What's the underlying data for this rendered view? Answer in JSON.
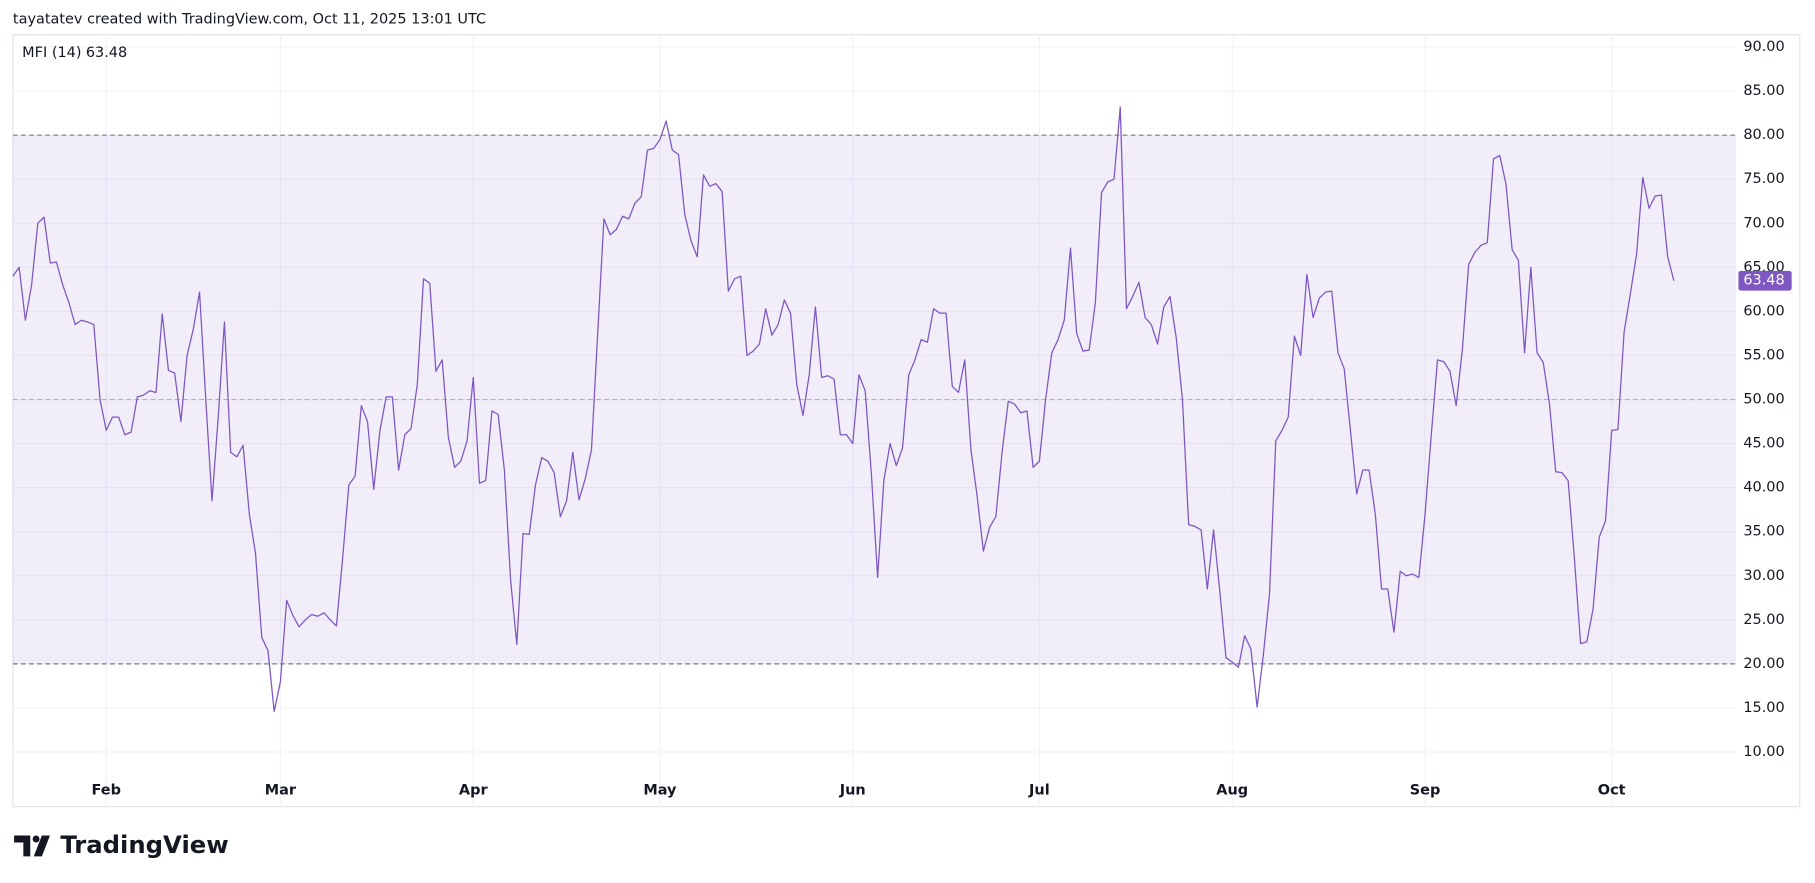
{
  "header": {
    "title": "tayatatev created with TradingView.com, Oct 11, 2025 13:01 UTC"
  },
  "footer": {
    "logo": "TradingView"
  },
  "chart_data": {
    "type": "line",
    "last_label": "63.48",
    "series": [
      {
        "name": "MFI (14)",
        "color": "#7e57c2",
        "values": [
          64,
          65,
          59,
          63,
          70,
          70.7,
          65.5,
          65.6,
          63,
          61,
          58.5,
          59,
          58.8,
          58.5,
          50,
          46.5,
          48,
          48,
          46,
          46.3,
          50.3,
          50.5,
          51,
          50.8,
          59.7,
          53.3,
          53,
          47.5,
          55,
          58,
          62.2,
          50,
          38.5,
          48,
          58.8,
          44,
          43.5,
          44.8,
          37,
          32.5,
          23,
          21.5,
          14.6,
          18,
          27.2,
          25.5,
          24.2,
          25,
          25.6,
          25.4,
          25.8,
          25,
          24.3,
          32,
          40.3,
          41.3,
          49.3,
          47.5,
          39.8,
          46.5,
          50.3,
          50.3,
          42,
          46,
          46.7,
          51.7,
          63.7,
          63.2,
          53.2,
          54.5,
          45.7,
          42.3,
          43,
          45.3,
          52.5,
          40.5,
          40.8,
          48.7,
          48.3,
          42,
          29.5,
          22.2,
          34.8,
          34.7,
          40.3,
          43.4,
          43,
          41.7,
          36.7,
          38.5,
          44,
          38.6,
          41,
          44.3,
          57.5,
          70.5,
          68.7,
          69.3,
          70.8,
          70.5,
          72.3,
          73,
          78.3,
          78.5,
          79.5,
          81.6,
          78.3,
          77.8,
          71,
          68,
          66.2,
          75.5,
          74.2,
          74.5,
          73.6,
          62.3,
          63.7,
          64,
          55,
          55.5,
          56.3,
          60.3,
          57.3,
          58.5,
          61.3,
          59.8,
          51.7,
          48.2,
          52.8,
          60.5,
          52.5,
          52.7,
          52.3,
          46,
          46,
          45,
          52.8,
          51,
          41.5,
          29.8,
          40.8,
          45,
          42.5,
          44.5,
          52.8,
          54.5,
          56.8,
          56.5,
          60.3,
          59.8,
          59.8,
          51.5,
          50.8,
          54.5,
          44.3,
          39,
          32.8,
          35.5,
          36.7,
          44,
          49.8,
          49.5,
          48.5,
          48.7,
          42.3,
          43,
          50,
          55.3,
          56.8,
          59,
          67.2,
          57.5,
          55.5,
          55.6,
          61,
          73.5,
          74.7,
          75,
          83.2,
          60.3,
          61.7,
          63.3,
          59.3,
          58.5,
          56.3,
          60.5,
          61.7,
          57,
          50,
          35.8,
          35.6,
          35.2,
          28.5,
          35.2,
          28.3,
          20.7,
          20.2,
          19.6,
          23.2,
          21.7,
          15.1,
          21,
          28,
          45.3,
          46.5,
          48,
          57.2,
          55,
          64.2,
          59.3,
          61.5,
          62.2,
          62.3,
          55.3,
          53.5,
          46.5,
          39.3,
          42,
          42,
          37,
          28.5,
          28.5,
          23.6,
          30.5,
          30,
          30.2,
          29.8,
          37,
          46,
          54.5,
          54.3,
          53.2,
          49.3,
          55.7,
          65.3,
          66.7,
          67.5,
          67.8,
          77.3,
          77.7,
          74.5,
          67,
          65.8,
          55.3,
          65,
          55.3,
          54.2,
          49.5,
          41.8,
          41.7,
          40.8,
          32,
          22.3,
          22.5,
          26.2,
          34.4,
          36.2,
          46.5,
          46.6,
          57.7,
          62,
          66.5,
          75.2,
          71.7,
          73.1,
          73.2,
          66.2,
          63.48
        ]
      }
    ],
    "x": [
      -15,
      -14,
      -13,
      -12,
      -11,
      -10,
      -9,
      -8,
      -7,
      -6,
      -5,
      -4,
      -3,
      -2,
      -1,
      0,
      1,
      2,
      3,
      4,
      5,
      6,
      7,
      8,
      9,
      10,
      11,
      12,
      13,
      14,
      15,
      16,
      17,
      18,
      19,
      20,
      21,
      22,
      23,
      24,
      25,
      26,
      27,
      28,
      29,
      30,
      31,
      32,
      33,
      34,
      35,
      36,
      37,
      38,
      39,
      40,
      41,
      42,
      43,
      44,
      45,
      46,
      47,
      48,
      49,
      50,
      51,
      52,
      53,
      54,
      55,
      56,
      57,
      58,
      59,
      60,
      61,
      62,
      63,
      64,
      65,
      66,
      67,
      68,
      69,
      70,
      71,
      72,
      73,
      74,
      75,
      76,
      77,
      78,
      79,
      80,
      81,
      82,
      83,
      84,
      85,
      86,
      87,
      88,
      89,
      90,
      91,
      92,
      93,
      94,
      95,
      96,
      97,
      98,
      99,
      100,
      101,
      102,
      103,
      104,
      105,
      106,
      107,
      108,
      109,
      110,
      111,
      112,
      113,
      114,
      115,
      116,
      117,
      118,
      119,
      120,
      121,
      122,
      123,
      124,
      125,
      126,
      127,
      128,
      129,
      130,
      131,
      132,
      133,
      134,
      135,
      136,
      137,
      138,
      139,
      140,
      141,
      142,
      143,
      144,
      145,
      146,
      147,
      148,
      149,
      150,
      151,
      152,
      153,
      154,
      155,
      156,
      157,
      158,
      159,
      160,
      161,
      162,
      163,
      164,
      165,
      166,
      167,
      168,
      169,
      170,
      171,
      172,
      173,
      174,
      175,
      176,
      177,
      178,
      179,
      180,
      181,
      182,
      183,
      184,
      185,
      186,
      187,
      188,
      189,
      190,
      191,
      192,
      193,
      194,
      195,
      196,
      197,
      198,
      199,
      200,
      201,
      202,
      203,
      204,
      205,
      206,
      207,
      208,
      209,
      210,
      211,
      212,
      213,
      214,
      215,
      216,
      217,
      218,
      219,
      220,
      221,
      222,
      223,
      224,
      225,
      226,
      227,
      228,
      229,
      230,
      231,
      232,
      233,
      234,
      235,
      236,
      237,
      238,
      239,
      240,
      241,
      242,
      243,
      244,
      245,
      246,
      247,
      248,
      249,
      250,
      251,
      252
    ],
    "xlim": [
      -15,
      262
    ],
    "xticks": [
      {
        "value": 0,
        "label": "Feb"
      },
      {
        "value": 28,
        "label": "Mar"
      },
      {
        "value": 59,
        "label": "Apr"
      },
      {
        "value": 89,
        "label": "May"
      },
      {
        "value": 120,
        "label": "Jun"
      },
      {
        "value": 150,
        "label": "Jul"
      },
      {
        "value": 181,
        "label": "Aug"
      },
      {
        "value": 212,
        "label": "Sep"
      },
      {
        "value": 242,
        "label": "Oct"
      }
    ],
    "ylim": [
      3.8,
      91.4
    ],
    "yticks": [
      {
        "value": 10,
        "label": "10.00"
      },
      {
        "value": 15,
        "label": "15.00"
      },
      {
        "value": 20,
        "label": "20.00"
      },
      {
        "value": 25,
        "label": "25.00"
      },
      {
        "value": 30,
        "label": "30.00"
      },
      {
        "value": 35,
        "label": "35.00"
      },
      {
        "value": 40,
        "label": "40.00"
      },
      {
        "value": 45,
        "label": "45.00"
      },
      {
        "value": 50,
        "label": "50.00"
      },
      {
        "value": 55,
        "label": "55.00"
      },
      {
        "value": 60,
        "label": "60.00"
      },
      {
        "value": 65,
        "label": "65.00"
      },
      {
        "value": 70,
        "label": "70.00"
      },
      {
        "value": 75,
        "label": "75.00"
      },
      {
        "value": 80,
        "label": "80.00"
      },
      {
        "value": 85,
        "label": "85.00"
      },
      {
        "value": 90,
        "label": "90.00"
      }
    ],
    "levels": [
      80,
      50,
      20
    ],
    "band_color": "#7e57c2",
    "grid": true
  }
}
